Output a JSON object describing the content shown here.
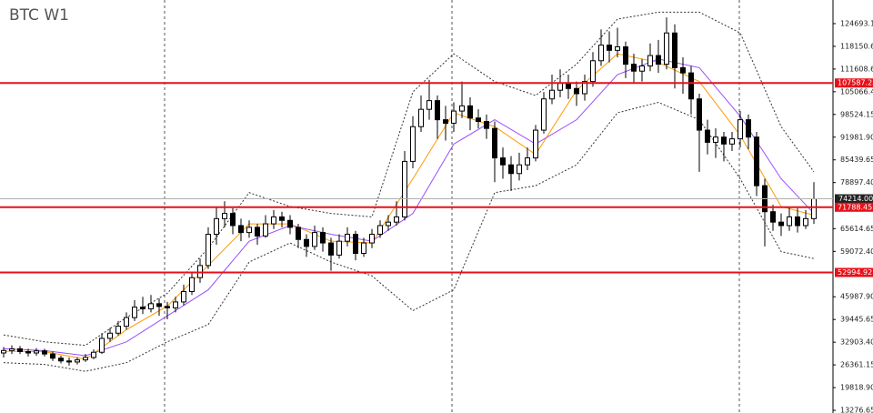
{
  "chart_data": {
    "type": "candlestick",
    "title": "BTC W1",
    "ylim": [
      12500,
      131500
    ],
    "yticks": [
      124693.15,
      118150.65,
      111608.65,
      {
        "value": 105066.4,
        "label": "105066.40"
      },
      98524.15,
      {
        "value": 91981.9,
        "label": "91981.90"
      },
      85439.65,
      {
        "value": 78897.4,
        "label": "78897.40"
      },
      65614.65,
      {
        "value": 59072.4,
        "label": "59072.40"
      },
      {
        "value": 45987.9,
        "label": "45987.90"
      },
      39445.65,
      {
        "value": 32903.4,
        "label": "32903.40"
      },
      26361.15,
      {
        "value": 19818.9,
        "label": "19818.90"
      },
      13276.65
    ],
    "levels": [
      107587.25,
      71788.45,
      52994.92
    ],
    "level_color": "#e8101a",
    "current_price": {
      "value": 74214,
      "label": "74214.00"
    },
    "x": [
      0,
      5,
      10,
      15,
      20,
      25,
      30,
      35,
      40,
      45,
      50,
      55,
      60,
      65,
      70,
      75,
      80,
      85,
      90,
      95,
      99
    ],
    "series": [
      {
        "type": "candlestick",
        "color": "#000000",
        "values": [
          [
            29800,
            31500,
            28500,
            30500
          ],
          [
            30500,
            32000,
            29500,
            31000
          ],
          [
            31000,
            31800,
            29500,
            30200
          ],
          [
            30200,
            31000,
            28800,
            29800
          ],
          [
            29800,
            31200,
            29000,
            30400
          ],
          [
            30400,
            31000,
            28800,
            29500
          ],
          [
            29500,
            30200,
            27500,
            28300
          ],
          [
            28300,
            29000,
            26800,
            27500
          ],
          [
            27500,
            28500,
            26200,
            27200
          ],
          [
            27200,
            28600,
            26500,
            27800
          ],
          [
            27800,
            29500,
            27200,
            28500
          ],
          [
            28500,
            30800,
            28000,
            30000
          ],
          [
            30000,
            35500,
            29500,
            34000
          ],
          [
            34000,
            37000,
            33000,
            35500
          ],
          [
            35500,
            39000,
            34800,
            37500
          ],
          [
            37500,
            41500,
            36500,
            40000
          ],
          [
            40000,
            45000,
            39000,
            43000
          ],
          [
            43000,
            46000,
            41000,
            42500
          ],
          [
            42500,
            46500,
            41500,
            44000
          ],
          [
            44000,
            45500,
            40500,
            43200
          ],
          [
            43200,
            44500,
            39500,
            42800
          ],
          [
            42800,
            46000,
            41500,
            44500
          ],
          [
            44500,
            49500,
            43500,
            47500
          ],
          [
            47500,
            53000,
            46500,
            51500
          ],
          [
            51500,
            57000,
            50000,
            55000
          ],
          [
            55000,
            66000,
            54000,
            64000
          ],
          [
            64000,
            72000,
            61000,
            68500
          ],
          [
            68500,
            73500,
            66000,
            70000
          ],
          [
            70000,
            71500,
            64000,
            66500
          ],
          [
            66500,
            68500,
            62000,
            64500
          ],
          [
            64500,
            68000,
            63000,
            66000
          ],
          [
            66000,
            67000,
            61000,
            63500
          ],
          [
            63500,
            69500,
            63000,
            67000
          ],
          [
            67000,
            71000,
            65500,
            69000
          ],
          [
            69000,
            70500,
            66000,
            68000
          ],
          [
            68000,
            69500,
            64000,
            66000
          ],
          [
            66000,
            67000,
            60000,
            62500
          ],
          [
            62500,
            64000,
            57500,
            60500
          ],
          [
            60500,
            66500,
            59500,
            64500
          ],
          [
            64500,
            66000,
            59000,
            61500
          ],
          [
            61500,
            63000,
            53500,
            58000
          ],
          [
            58000,
            64000,
            57000,
            62000
          ],
          [
            62000,
            66000,
            60500,
            64000
          ],
          [
            64000,
            65000,
            56500,
            58500
          ],
          [
            58500,
            63000,
            57500,
            61500
          ],
          [
            61500,
            65500,
            60000,
            64000
          ],
          [
            64000,
            68000,
            63000,
            66500
          ],
          [
            66500,
            69500,
            65000,
            67500
          ],
          [
            67500,
            73500,
            66500,
            69000
          ],
          [
            69000,
            88000,
            68000,
            85000
          ],
          [
            85000,
            98000,
            83000,
            95000
          ],
          [
            95000,
            104000,
            93500,
            100000
          ],
          [
            100000,
            108500,
            97000,
            102500
          ],
          [
            102500,
            104000,
            91500,
            97000
          ],
          [
            97000,
            101000,
            91000,
            96000
          ],
          [
            96000,
            102000,
            93500,
            99500
          ],
          [
            99500,
            108000,
            97500,
            101000
          ],
          [
            101000,
            103500,
            94000,
            97500
          ],
          [
            97500,
            100000,
            94500,
            96500
          ],
          [
            96500,
            98500,
            91500,
            94500
          ],
          [
            94500,
            96500,
            79000,
            86000
          ],
          [
            86000,
            89000,
            80000,
            84000
          ],
          [
            84000,
            86500,
            76500,
            81500
          ],
          [
            81500,
            87500,
            79500,
            84000
          ],
          [
            84000,
            89000,
            82500,
            86000
          ],
          [
            86000,
            95500,
            85000,
            94000
          ],
          [
            94000,
            105000,
            93000,
            103000
          ],
          [
            103000,
            110000,
            101500,
            105500
          ],
          [
            105500,
            111500,
            103500,
            107500
          ],
          [
            107500,
            110000,
            103000,
            106000
          ],
          [
            106000,
            108000,
            101000,
            104500
          ],
          [
            104500,
            110000,
            102500,
            108000
          ],
          [
            108000,
            116500,
            106500,
            114000
          ],
          [
            114000,
            123000,
            112500,
            118500
          ],
          [
            118500,
            122500,
            113500,
            117000
          ],
          [
            117000,
            123500,
            115000,
            118000
          ],
          [
            118000,
            119500,
            109000,
            113000
          ],
          [
            113000,
            116000,
            107500,
            111000
          ],
          [
            111000,
            114500,
            108000,
            112500
          ],
          [
            112500,
            119000,
            111000,
            115500
          ],
          [
            115500,
            120000,
            110500,
            113000
          ],
          [
            113000,
            126500,
            111500,
            122000
          ],
          [
            122000,
            124500,
            106000,
            112000
          ],
          [
            112000,
            115000,
            104500,
            110500
          ],
          [
            110500,
            112500,
            98500,
            103000
          ],
          [
            103000,
            104500,
            82000,
            94000
          ],
          [
            94000,
            97000,
            87000,
            90500
          ],
          [
            90500,
            94500,
            86000,
            92000
          ],
          [
            92000,
            93500,
            85000,
            90000
          ],
          [
            90000,
            93500,
            88000,
            91500
          ],
          [
            91500,
            99500,
            89000,
            97000
          ],
          [
            97000,
            98500,
            88500,
            92000
          ],
          [
            92000,
            93500,
            75000,
            78000
          ],
          [
            78000,
            80000,
            60500,
            70500
          ],
          [
            70500,
            72500,
            65000,
            67500
          ],
          [
            67500,
            70000,
            63500,
            66500
          ],
          [
            66500,
            72000,
            65000,
            69000
          ],
          [
            69000,
            71500,
            64500,
            66500
          ],
          [
            66500,
            71000,
            65500,
            68500
          ],
          [
            68500,
            79000,
            67000,
            74214
          ]
        ]
      },
      {
        "type": "line",
        "color": "#ff9900",
        "values": [
          30300,
          30200,
          28000,
          36500,
          43300,
          55000,
          67000,
          67000,
          62000,
          61500,
          80000,
          99000,
          95000,
          87000,
          105500,
          116000,
          113500,
          108000,
          92500,
          72000,
          69500
        ]
      },
      {
        "type": "line",
        "color": "#9b4dff",
        "values": [
          31000,
          30500,
          29000,
          33000,
          40500,
          48000,
          62000,
          66500,
          64000,
          62000,
          70000,
          90000,
          97000,
          90000,
          97000,
          110000,
          114500,
          112000,
          98000,
          80000,
          70000
        ]
      },
      {
        "type": "line",
        "color": "#333333",
        "dash": true,
        "values": [
          35000,
          33000,
          32000,
          40000,
          47000,
          60000,
          76000,
          72000,
          70000,
          69000,
          105000,
          116000,
          108000,
          104000,
          113000,
          126000,
          128000,
          128000,
          122000,
          95000,
          82000
        ]
      },
      {
        "type": "line",
        "color": "#333333",
        "dash": true,
        "values": [
          27000,
          26500,
          24500,
          27000,
          33000,
          38000,
          56000,
          61500,
          56000,
          52000,
          42000,
          48000,
          76000,
          78000,
          84000,
          99000,
          102000,
          97000,
          80000,
          59000,
          57000
        ]
      }
    ]
  }
}
